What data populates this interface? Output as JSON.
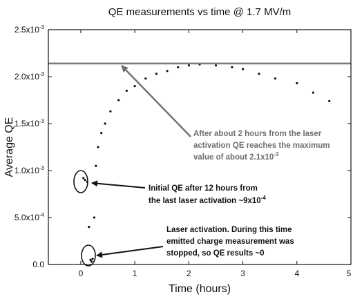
{
  "chart_data": {
    "type": "scatter",
    "title": "QE measurements vs time @ 1.7 MV/m",
    "xlabel": "Time (hours)",
    "ylabel": "Average QE",
    "xlim": [
      -0.6,
      5.0
    ],
    "ylim": [
      0,
      0.0025
    ],
    "x_ticks": [
      {
        "value": 0,
        "label": "0"
      },
      {
        "value": 1,
        "label": "1"
      },
      {
        "value": 2,
        "label": "2"
      },
      {
        "value": 3,
        "label": "3"
      },
      {
        "value": 4,
        "label": "4"
      },
      {
        "value": 5,
        "label": "5"
      }
    ],
    "y_ticks": [
      {
        "value": 0,
        "mant": "0.0",
        "exp": ""
      },
      {
        "value": 0.0005,
        "mant": "5.0x10",
        "exp": "-4"
      },
      {
        "value": 0.001,
        "mant": "1.0x10",
        "exp": "-3"
      },
      {
        "value": 0.0015,
        "mant": "1.5x10",
        "exp": "-3"
      },
      {
        "value": 0.002,
        "mant": "2.0x10",
        "exp": "-3"
      },
      {
        "value": 0.0025,
        "mant": "2.5x10",
        "exp": "-3"
      }
    ],
    "grid": false,
    "legend": "none",
    "reference_line": {
      "y": 0.00214,
      "color": "#7a7a7a"
    },
    "series": [
      {
        "x": [
          0.05,
          0.08,
          0.12,
          0.15,
          0.18,
          0.2,
          0.22,
          0.25,
          0.28,
          0.32,
          0.38,
          0.45,
          0.55,
          0.7,
          0.85,
          1.0,
          1.2,
          1.4,
          1.6,
          1.8,
          2.0,
          2.2,
          2.5,
          2.8,
          3.0,
          3.3,
          3.6,
          4.0,
          4.3,
          4.6
        ],
        "y": [
          0.00092,
          0.0009,
          0.00088,
          0.0004,
          5e-05,
          3e-05,
          6e-05,
          0.0005,
          0.00105,
          0.00125,
          0.0014,
          0.0015,
          0.00163,
          0.00175,
          0.00185,
          0.0019,
          0.00198,
          0.00203,
          0.00206,
          0.0021,
          0.00212,
          0.00213,
          0.00212,
          0.0021,
          0.00208,
          0.00203,
          0.00198,
          0.00193,
          0.00183,
          0.00174
        ],
        "color": "#111111"
      }
    ],
    "annotations": [
      {
        "lines": [
          "After about 2 hours from the laser",
          "activation QE reaches the maximum"
        ],
        "last_line": "value of about 2.1x10",
        "last_sup": "-3"
      },
      {
        "lines": [
          "Initial QE after 12 hours from"
        ],
        "last_line": "the last laser activation ~9x10",
        "last_sup": "-4"
      },
      {
        "lines": [
          "Laser activation. During this time",
          "emitted charge measurement was",
          "stopped, so QE results ~0"
        ]
      }
    ]
  }
}
